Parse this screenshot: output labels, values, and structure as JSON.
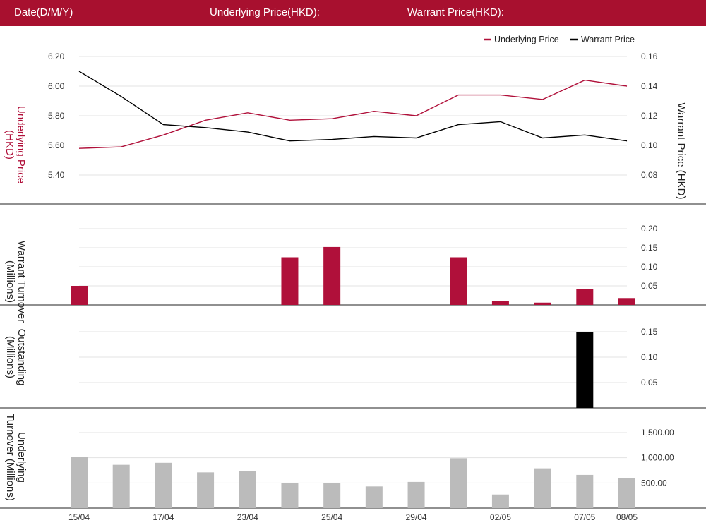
{
  "header": {
    "date_label": "Date(D/M/Y)",
    "underlying_label": "Underlying Price(HKD):",
    "warrant_label": "Warrant Price(HKD):"
  },
  "colors": {
    "header": "#a8102f",
    "underlying": "#b0103a",
    "warrant": "#000000",
    "turnover": "#bbbbbb",
    "grid": "#e3e3e3"
  },
  "legend": {
    "underlying": "Underlying Price",
    "warrant": "Warrant Price"
  },
  "x_labels": [
    {
      "i": 0,
      "text": "15/04"
    },
    {
      "i": 2,
      "text": "17/04"
    },
    {
      "i": 4,
      "text": "23/04"
    },
    {
      "i": 6,
      "text": "25/04"
    },
    {
      "i": 8,
      "text": "29/04"
    },
    {
      "i": 10,
      "text": "02/05"
    },
    {
      "i": 12,
      "text": "07/05"
    },
    {
      "i": 13,
      "text": "08/05"
    }
  ],
  "chart_data": [
    {
      "type": "line",
      "ylabel": "Underlying Price (HKD)",
      "y2label": "Warrant  Price (HKD)",
      "ylim": [
        5.4,
        6.2
      ],
      "y2lim": [
        0.08,
        0.16
      ],
      "yticks": [
        "5.40",
        "5.60",
        "5.80",
        "6.00",
        "6.20"
      ],
      "y2ticks": [
        "0.08",
        "0.10",
        "0.12",
        "0.14",
        "0.16"
      ],
      "series": [
        {
          "name": "Underlying Price",
          "axis": "left",
          "values": [
            5.58,
            5.59,
            5.67,
            5.77,
            5.82,
            5.77,
            5.78,
            5.83,
            5.8,
            5.94,
            5.94,
            5.91,
            6.04,
            6.0
          ]
        },
        {
          "name": "Warrant Price",
          "axis": "right",
          "values": [
            0.15,
            0.133,
            0.114,
            0.112,
            0.109,
            0.103,
            0.104,
            0.106,
            0.105,
            0.114,
            0.116,
            0.105,
            0.107,
            0.103
          ]
        }
      ],
      "grid": true
    },
    {
      "type": "bar",
      "ylabel": "Warrant  Turnover (Millions)",
      "ylim": [
        0,
        0.2
      ],
      "yticks": [
        "0.05",
        "0.10",
        "0.15",
        "0.20"
      ],
      "values": [
        0.05,
        0,
        0,
        0,
        0,
        0.125,
        0.152,
        0,
        0,
        0.125,
        0.01,
        0.006,
        0.042,
        0.018
      ]
    },
    {
      "type": "bar",
      "ylabel": "Outstanding (Millions)",
      "ylim": [
        0,
        0.15
      ],
      "yticks": [
        "0.05",
        "0.10",
        "0.15"
      ],
      "values": [
        0,
        0,
        0,
        0,
        0,
        0,
        0,
        0,
        0,
        0,
        0,
        0,
        0.15,
        0
      ]
    },
    {
      "type": "bar",
      "ylabel": "Underlying Turnover (Millions)",
      "ylim": [
        0,
        1500
      ],
      "yticks": [
        "500.00",
        "1,000.00",
        "1,500.00"
      ],
      "values": [
        1010,
        860,
        900,
        710,
        740,
        500,
        500,
        430,
        520,
        990,
        270,
        790,
        660,
        590
      ]
    }
  ]
}
